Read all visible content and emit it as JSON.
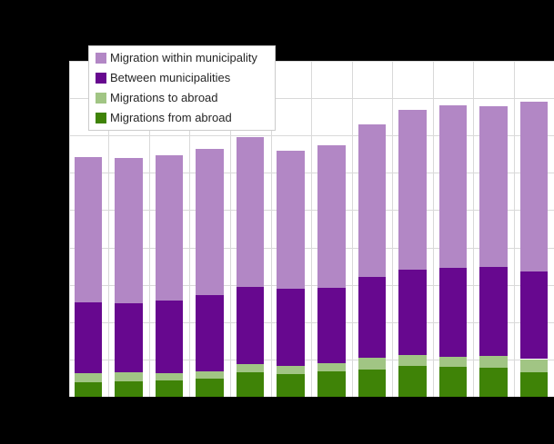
{
  "page": {
    "background_color": "#000000",
    "plot_background_color": "#ffffff",
    "gridline_color": "#d9d9d9",
    "text_color": "#262626"
  },
  "legend": {
    "items": [
      {
        "label": "Migration within municipality",
        "color": "#b287c5"
      },
      {
        "label": "Between municipalities",
        "color": "#67088f"
      },
      {
        "label": "Migrations to abroad",
        "color": "#a1c584"
      },
      {
        "label": "Migrations from abroad",
        "color": "#3f8307"
      }
    ]
  },
  "chart_data": {
    "type": "bar",
    "stacked": true,
    "title": "",
    "xlabel": "",
    "ylabel": "",
    "categories": [
      "1",
      "2",
      "3",
      "4",
      "5",
      "6",
      "7",
      "8",
      "9",
      "10",
      "11",
      "12"
    ],
    "x_tick_labels_visible": false,
    "y_tick_labels_visible": false,
    "ylim": [
      0,
      45000
    ],
    "ytick_step": 5000,
    "grid": true,
    "legend_position": "top-left",
    "series": [
      {
        "name": "Migration within municipality",
        "color": "#b287c5",
        "values": [
          19500,
          19500,
          19500,
          19600,
          20000,
          18500,
          19000,
          20400,
          21400,
          21750,
          21450,
          22750
        ]
      },
      {
        "name": "Between municipalities",
        "color": "#67088f",
        "values": [
          9500,
          9250,
          9750,
          10150,
          10350,
          10350,
          10150,
          10800,
          11350,
          11900,
          11950,
          11750
        ]
      },
      {
        "name": "Migrations to abroad",
        "color": "#a1c584",
        "values": [
          1200,
          1200,
          950,
          1000,
          1100,
          1100,
          1100,
          1550,
          1550,
          1400,
          1600,
          1750
        ]
      },
      {
        "name": "Migrations from abroad",
        "color": "#3f8307",
        "values": [
          1950,
          2050,
          2200,
          2450,
          3300,
          3000,
          3400,
          3700,
          4100,
          4000,
          3900,
          3300
        ]
      }
    ],
    "stacking_order_bottom_to_top": [
      "Migrations from abroad",
      "Migrations to abroad",
      "Between municipalities",
      "Migration within municipality"
    ]
  }
}
